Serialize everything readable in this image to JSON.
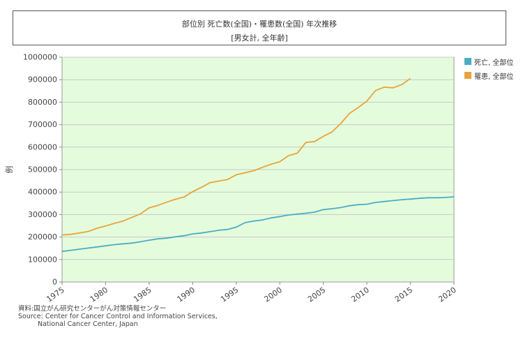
{
  "header": {
    "title": "部位別 死亡数(全国)・罹患数(全国) 年次推移",
    "subtitle": "[男女計, 全年齢]"
  },
  "source": {
    "line1": "資料:国立がん研究センターがん対策情報センター",
    "line2": "Source: Center for Cancer Control and Information Services,",
    "line3": "National Cancer Center, Japan"
  },
  "colors": {
    "plot_bg": "#e4fcdc",
    "grid": "#c8c8c8",
    "death": "#4bacc6",
    "incidence": "#e8a33c"
  },
  "chart_data": {
    "type": "line",
    "title": "部位別 死亡数(全国)・罹患数(全国) 年次推移",
    "xlabel": "",
    "ylabel": "例",
    "xlim": [
      1975,
      2020
    ],
    "ylim": [
      0,
      1000000
    ],
    "x_ticks": [
      1975,
      1980,
      1985,
      1990,
      1995,
      2000,
      2005,
      2010,
      2015,
      2020
    ],
    "y_ticks": [
      0,
      100000,
      200000,
      300000,
      400000,
      500000,
      600000,
      700000,
      800000,
      900000,
      1000000
    ],
    "legend_position": "right",
    "series": [
      {
        "name": "死亡, 全部位",
        "color": "#4bacc6",
        "x": [
          1975,
          1976,
          1977,
          1978,
          1979,
          1980,
          1981,
          1982,
          1983,
          1984,
          1985,
          1986,
          1987,
          1988,
          1989,
          1990,
          1991,
          1992,
          1993,
          1994,
          1995,
          1996,
          1997,
          1998,
          1999,
          2000,
          2001,
          2002,
          2003,
          2004,
          2005,
          2006,
          2007,
          2008,
          2009,
          2010,
          2011,
          2012,
          2013,
          2014,
          2015,
          2016,
          2017,
          2018,
          2019,
          2020
        ],
        "values": [
          136000,
          141000,
          146000,
          151000,
          156000,
          161000,
          166000,
          170000,
          173000,
          179000,
          186000,
          192000,
          195000,
          201000,
          206000,
          214000,
          218000,
          224000,
          230000,
          234000,
          244000,
          264000,
          271000,
          276000,
          285000,
          291000,
          298000,
          302000,
          306000,
          311000,
          322000,
          326000,
          331000,
          339000,
          344000,
          346000,
          354000,
          358000,
          362000,
          366000,
          369000,
          372000,
          375000,
          375000,
          376000,
          379000
        ]
      },
      {
        "name": "罹患, 全部位",
        "color": "#e8a33c",
        "x": [
          1975,
          1976,
          1977,
          1978,
          1979,
          1980,
          1981,
          1982,
          1983,
          1984,
          1985,
          1986,
          1987,
          1988,
          1989,
          1990,
          1991,
          1992,
          1993,
          1994,
          1995,
          1996,
          1997,
          1998,
          1999,
          2000,
          2001,
          2002,
          2003,
          2004,
          2005,
          2006,
          2007,
          2008,
          2009,
          2010,
          2011,
          2012,
          2013,
          2014,
          2015,
          2016
        ],
        "values": [
          209000,
          212000,
          218000,
          225000,
          239000,
          249000,
          261000,
          271000,
          287000,
          303000,
          330000,
          341000,
          355000,
          368000,
          378000,
          402000,
          421000,
          442000,
          449000,
          456000,
          477000,
          486000,
          495000,
          510000,
          524000,
          535000,
          562000,
          573000,
          621000,
          625000,
          648000,
          668000,
          705000,
          750000,
          776000,
          805000,
          852000,
          867000,
          864000,
          878000,
          906000,
          null
        ]
      }
    ]
  }
}
